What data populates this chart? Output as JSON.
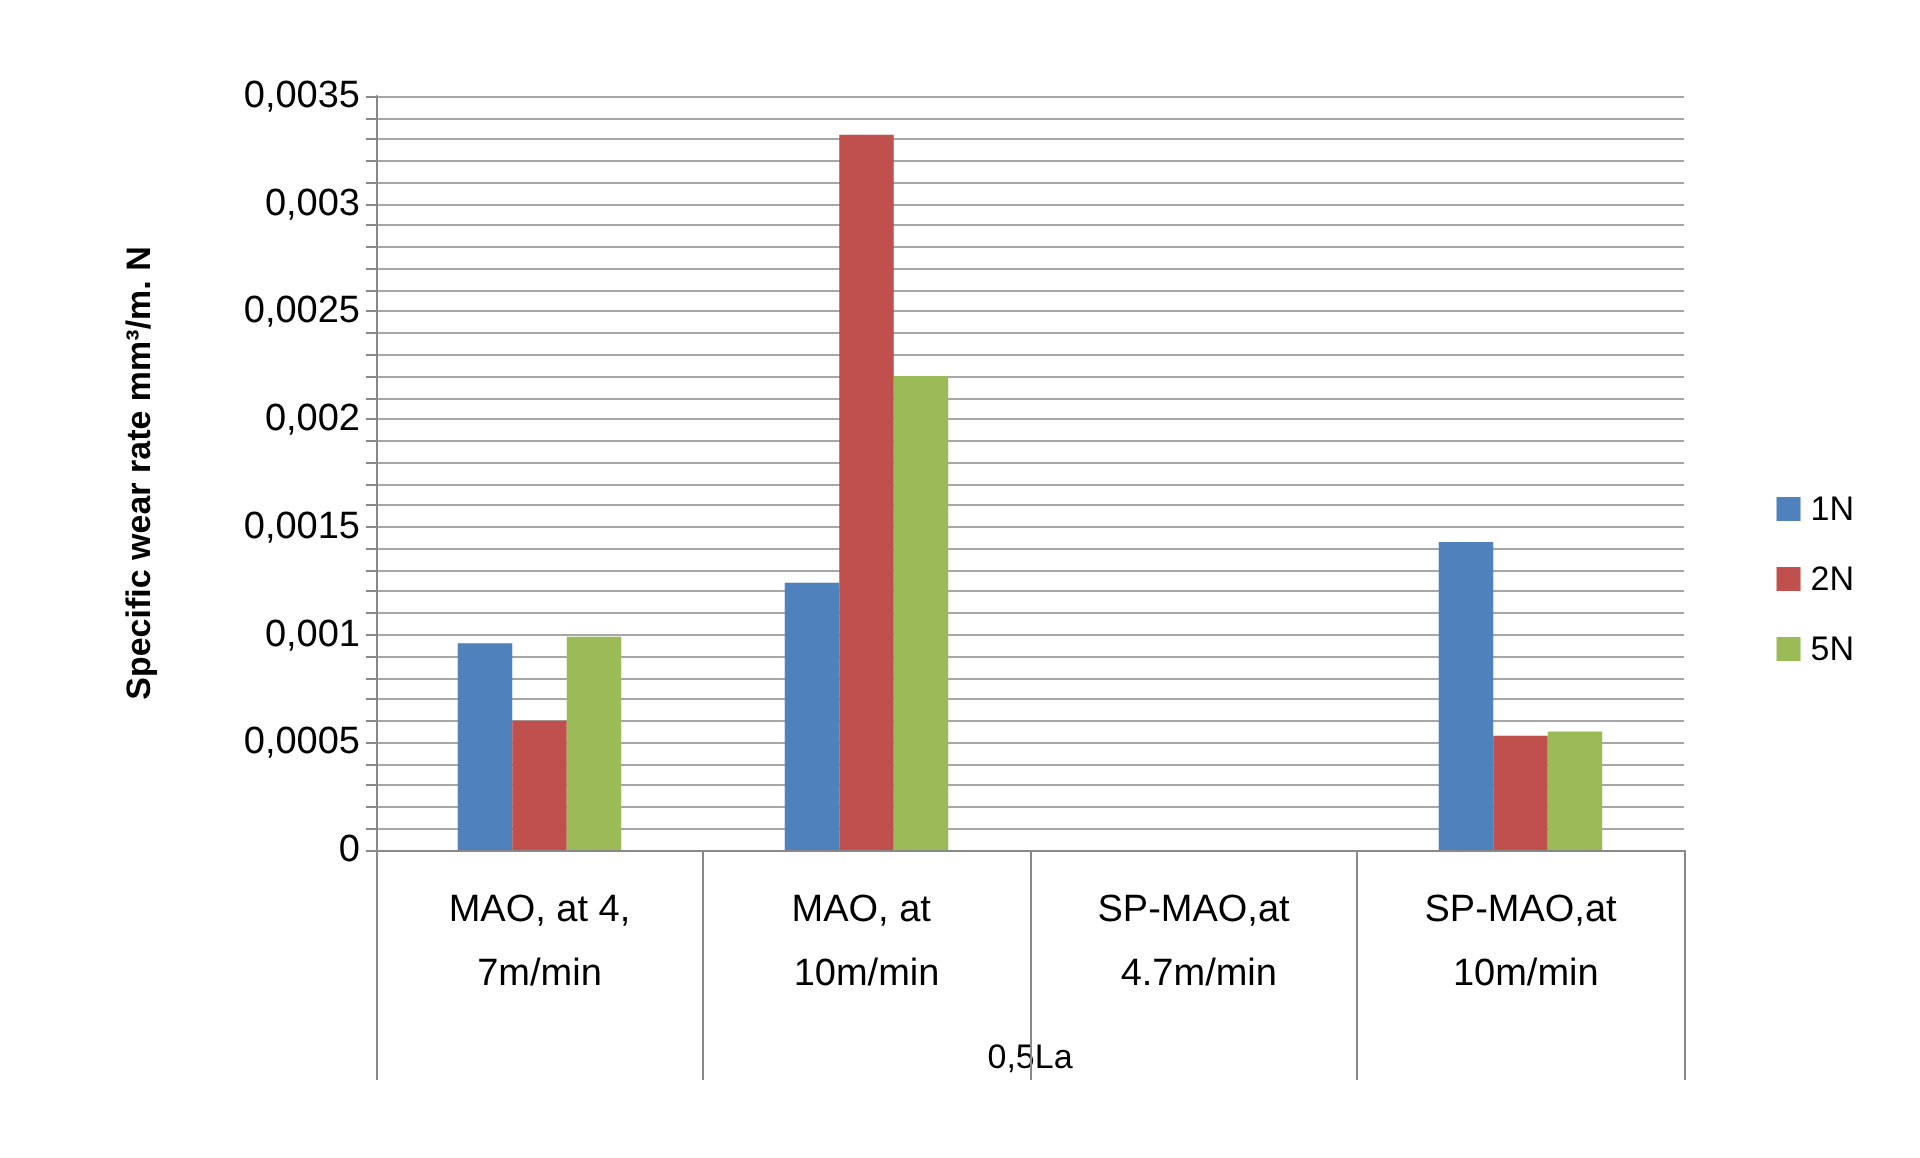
{
  "chart_data": {
    "type": "bar",
    "categories": [
      "MAO, at 4,7m/min",
      "MAO, at 10m/min",
      "SP-MAO,at 4.7m/min",
      "SP-MAO,at 10m/min"
    ],
    "xlabel": "0,5La",
    "ylabel": "Specific wear rate mm³/m. N",
    "series": [
      {
        "name": "1N",
        "color": "#4f81bd",
        "values": [
          0.00096,
          0.00124,
          null,
          0.00143
        ]
      },
      {
        "name": "2N",
        "color": "#c0504d",
        "values": [
          0.0006,
          0.00332,
          null,
          0.00053
        ]
      },
      {
        "name": "5N",
        "color": "#9bbb59",
        "values": [
          0.00099,
          0.0022,
          null,
          0.00055
        ]
      }
    ],
    "ylim": [
      0,
      0.0035
    ],
    "yticks": [
      {
        "value": 0,
        "label": "0"
      },
      {
        "value": 0.0001,
        "label": null
      },
      {
        "value": 0.0002,
        "label": null
      },
      {
        "value": 0.0003,
        "label": null
      },
      {
        "value": 0.0004,
        "label": null
      },
      {
        "value": 0.0005,
        "label": "0,0005"
      },
      {
        "value": 0.0006,
        "label": null
      },
      {
        "value": 0.0007,
        "label": null
      },
      {
        "value": 0.0008,
        "label": null
      },
      {
        "value": 0.0009,
        "label": null
      },
      {
        "value": 0.001,
        "label": "0,001"
      },
      {
        "value": 0.0011,
        "label": null
      },
      {
        "value": 0.0012,
        "label": null
      },
      {
        "value": 0.0013,
        "label": null
      },
      {
        "value": 0.0014,
        "label": null
      },
      {
        "value": 0.0015,
        "label": "0,0015"
      },
      {
        "value": 0.0016,
        "label": null
      },
      {
        "value": 0.0017,
        "label": null
      },
      {
        "value": 0.0018,
        "label": null
      },
      {
        "value": 0.0019,
        "label": null
      },
      {
        "value": 0.002,
        "label": "0,002"
      },
      {
        "value": 0.0021,
        "label": null
      },
      {
        "value": 0.0022,
        "label": null
      },
      {
        "value": 0.0023,
        "label": null
      },
      {
        "value": 0.0024,
        "label": null
      },
      {
        "value": 0.0025,
        "label": "0,0025"
      },
      {
        "value": 0.0026,
        "label": null
      },
      {
        "value": 0.0027,
        "label": null
      },
      {
        "value": 0.0028,
        "label": null
      },
      {
        "value": 0.0029,
        "label": null
      },
      {
        "value": 0.003,
        "label": "0,003"
      },
      {
        "value": 0.0031,
        "label": null
      },
      {
        "value": 0.0032,
        "label": null
      },
      {
        "value": 0.0033,
        "label": null
      },
      {
        "value": 0.0034,
        "label": null
      },
      {
        "value": 0.0035,
        "label": "0,0035"
      }
    ],
    "grid": true,
    "legend": "right"
  }
}
